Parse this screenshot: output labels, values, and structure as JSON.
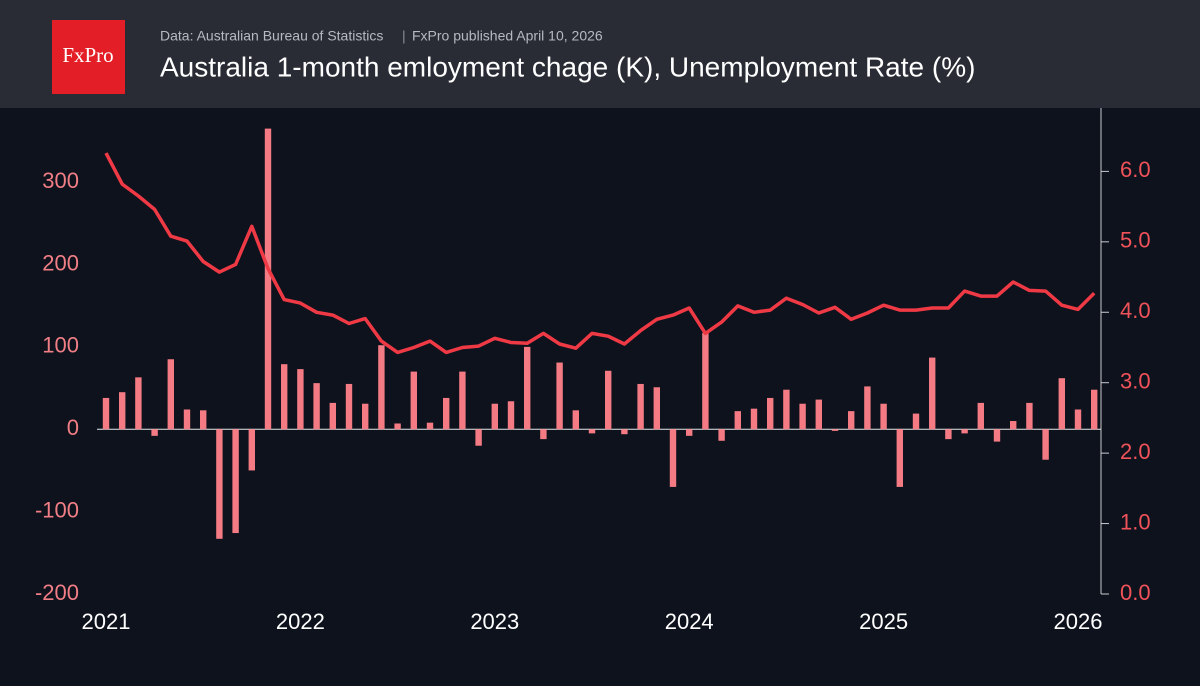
{
  "logo": "FxPro",
  "chart_data": {
    "type": "combo",
    "title": "Australia 1-month emloyment chage (K), Unemployment Rate (%)",
    "subtitle": "Data: Australian Bureau of Statistics",
    "note": "FxPro published April 10, 2026",
    "categories": [
      "2021",
      null,
      null,
      null,
      null,
      null,
      null,
      null,
      null,
      null,
      null,
      null,
      "2022",
      null,
      null,
      null,
      null,
      null,
      null,
      null,
      null,
      null,
      null,
      null,
      "2023",
      null,
      null,
      null,
      null,
      null,
      null,
      null,
      null,
      null,
      null,
      null,
      "2024",
      null,
      null,
      null,
      null,
      null,
      null,
      null,
      null,
      null,
      null,
      null,
      "2025",
      null,
      null,
      null,
      null,
      null,
      null,
      null,
      null,
      null,
      null,
      null,
      "2026",
      null
    ],
    "series": [
      {
        "type": "bar",
        "color": "#f47b83",
        "values": [
          38,
          45,
          63,
          -8,
          85,
          24,
          23,
          -133,
          -126,
          -50,
          365,
          79,
          73,
          56,
          32,
          55,
          31,
          102,
          7,
          70,
          8,
          38,
          70,
          -20,
          31,
          34,
          100,
          -12,
          81,
          23,
          -5,
          71,
          -6,
          55,
          51,
          -70,
          -8,
          117,
          -14,
          22,
          25,
          38,
          48,
          31,
          36,
          -2,
          22,
          52,
          31,
          -70,
          19,
          87,
          -12,
          -5,
          32,
          -15,
          10,
          32,
          -37,
          62,
          24,
          48
        ]
      },
      {
        "type": "line",
        "color": "#ef3a45",
        "axis": "y2",
        "values": [
          6.26,
          5.82,
          5.65,
          5.46,
          5.08,
          5.01,
          4.72,
          4.57,
          4.68,
          5.22,
          4.62,
          4.18,
          4.13,
          4.0,
          3.96,
          3.84,
          3.91,
          3.59,
          3.43,
          3.5,
          3.59,
          3.43,
          3.5,
          3.52,
          3.63,
          3.57,
          3.56,
          3.7,
          3.55,
          3.49,
          3.7,
          3.66,
          3.55,
          3.74,
          3.9,
          3.96,
          4.06,
          3.7,
          3.86,
          4.09,
          4.0,
          4.03,
          4.2,
          4.11,
          3.99,
          4.07,
          3.9,
          3.99,
          4.1,
          4.03,
          4.03,
          4.06,
          4.06,
          4.3,
          4.23,
          4.23,
          4.43,
          4.31,
          4.3,
          4.1,
          4.04,
          4.27
        ]
      }
    ],
    "ylim": [
      -200,
      390
    ],
    "yticks": [
      -200,
      -100,
      0,
      100,
      200,
      300
    ],
    "y2lim": [
      0,
      6.9
    ],
    "y2ticks": [
      {
        "value": 0,
        "label": "0.0"
      },
      {
        "value": 1,
        "label": "1.0"
      },
      {
        "value": 2,
        "label": "2.0"
      },
      {
        "value": 3,
        "label": "3.0"
      },
      {
        "value": 4,
        "label": "4.0"
      },
      {
        "value": 5,
        "label": "5.0"
      },
      {
        "value": 6,
        "label": "6.0"
      }
    ]
  }
}
